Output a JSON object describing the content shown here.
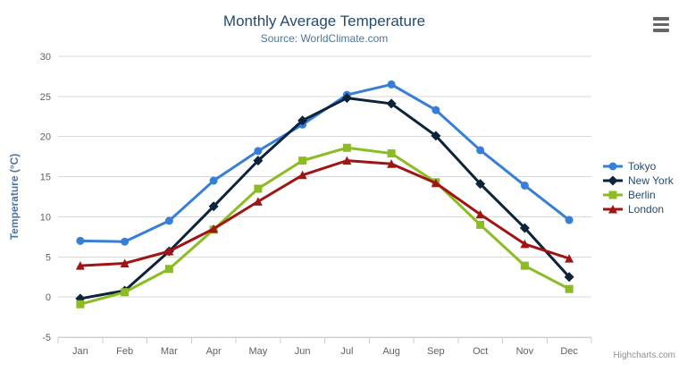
{
  "chart_data": {
    "type": "line",
    "title": "Monthly Average Temperature",
    "subtitle": "Source: WorldClimate.com",
    "xlabel": "",
    "ylabel": "Temperature (°C)",
    "ylim": [
      -5,
      30
    ],
    "ytick_step": 5,
    "grid": true,
    "legend_position": "right",
    "categories": [
      "Jan",
      "Feb",
      "Mar",
      "Apr",
      "May",
      "Jun",
      "Jul",
      "Aug",
      "Sep",
      "Oct",
      "Nov",
      "Dec"
    ],
    "series": [
      {
        "name": "Tokyo",
        "marker": "circle",
        "color": "#377fd6",
        "values": [
          7.0,
          6.9,
          9.5,
          14.5,
          18.2,
          21.5,
          25.2,
          26.5,
          23.3,
          18.3,
          13.9,
          9.6
        ]
      },
      {
        "name": "New York",
        "marker": "diamond",
        "color": "#0d233a",
        "values": [
          -0.2,
          0.8,
          5.7,
          11.3,
          17.0,
          22.0,
          24.8,
          24.1,
          20.1,
          14.1,
          8.6,
          2.5
        ]
      },
      {
        "name": "Berlin",
        "marker": "square",
        "color": "#8bbc21",
        "values": [
          -0.9,
          0.6,
          3.5,
          8.4,
          13.5,
          17.0,
          18.6,
          17.9,
          14.3,
          9.0,
          3.9,
          1.0
        ]
      },
      {
        "name": "London",
        "marker": "triangle",
        "color": "#a01414",
        "values": [
          3.9,
          4.2,
          5.7,
          8.5,
          11.9,
          15.2,
          17.0,
          16.6,
          14.2,
          10.3,
          6.6,
          4.8
        ]
      }
    ]
  },
  "credits": {
    "label": "Highcharts.com"
  },
  "colors": {
    "title": "#274b6d",
    "subtitle": "#4d759e",
    "axis_title": "#4d759e",
    "tick_label": "#606060",
    "grid_line": "#d8d8d8",
    "axis_line": "#c0d0e0",
    "legend_text": "#274b6d",
    "menu_icon": "#666666",
    "credits": "#909090",
    "background": "#ffffff"
  }
}
